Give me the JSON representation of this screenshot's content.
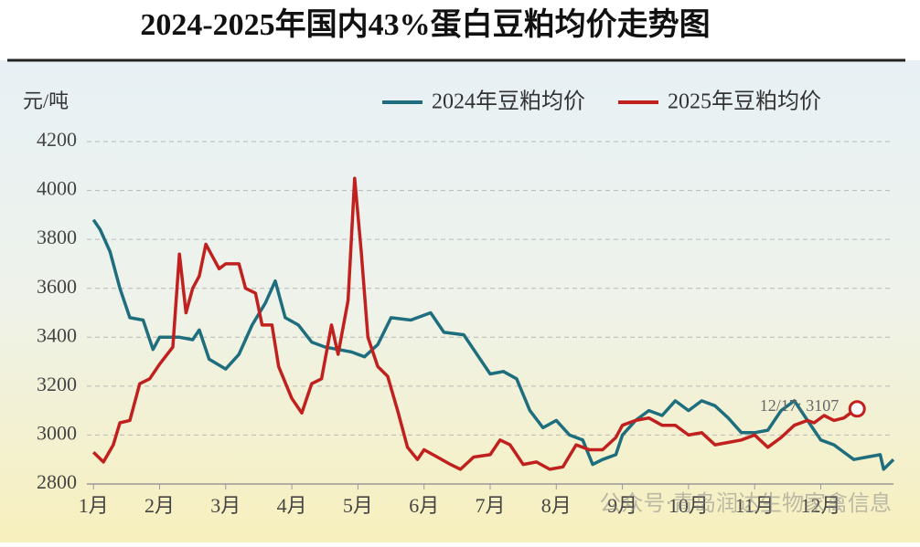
{
  "chart_data": {
    "type": "line",
    "title": "2024-2025年国内43%蛋白豆粕均价走势图",
    "y_label": "元/吨",
    "annotation": "12/17: 3107",
    "watermark": "公众号·青岛润达生物家禽信息",
    "xlim": [
      0.9,
      13.1
    ],
    "xticks": [
      {
        "value": 1,
        "label": "1月"
      },
      {
        "value": 2,
        "label": "2月"
      },
      {
        "value": 3,
        "label": "3月"
      },
      {
        "value": 4,
        "label": "4月"
      },
      {
        "value": 5,
        "label": "5月"
      },
      {
        "value": 6,
        "label": "6月"
      },
      {
        "value": 7,
        "label": "7月"
      },
      {
        "value": 8,
        "label": "8月"
      },
      {
        "value": 9,
        "label": "9月"
      },
      {
        "value": 10,
        "label": "10月"
      },
      {
        "value": 11,
        "label": "11月"
      },
      {
        "value": 12,
        "label": "12月"
      }
    ],
    "ylim": [
      2800,
      4200
    ],
    "yticks": [
      2800,
      3000,
      3200,
      3400,
      3600,
      3800,
      4000,
      4200
    ],
    "grid": true,
    "series": [
      {
        "name": "2024年豆粕均价",
        "color": "#1f6e7e",
        "x": [
          1.0,
          1.1,
          1.25,
          1.4,
          1.55,
          1.75,
          1.9,
          2.0,
          2.3,
          2.5,
          2.6,
          2.75,
          3.0,
          3.2,
          3.4,
          3.6,
          3.75,
          3.9,
          4.1,
          4.3,
          4.5,
          4.7,
          4.9,
          5.1,
          5.3,
          5.5,
          5.8,
          6.1,
          6.3,
          6.6,
          6.8,
          7.0,
          7.2,
          7.4,
          7.6,
          7.8,
          8.0,
          8.2,
          8.4,
          8.55,
          8.7,
          8.9,
          9.0,
          9.2,
          9.4,
          9.6,
          9.8,
          10.0,
          10.2,
          10.4,
          10.6,
          10.8,
          11.0,
          11.2,
          11.4,
          11.6,
          11.8,
          12.0,
          12.2,
          12.4,
          12.5,
          12.7,
          12.9,
          12.95,
          13.1
        ],
        "values": [
          3880,
          3840,
          3750,
          3600,
          3480,
          3470,
          3350,
          3400,
          3400,
          3390,
          3430,
          3310,
          3270,
          3330,
          3450,
          3540,
          3630,
          3480,
          3450,
          3380,
          3360,
          3350,
          3340,
          3320,
          3370,
          3480,
          3470,
          3500,
          3420,
          3410,
          3330,
          3250,
          3260,
          3230,
          3100,
          3030,
          3060,
          3000,
          2980,
          2880,
          2900,
          2920,
          3000,
          3060,
          3100,
          3080,
          3140,
          3100,
          3140,
          3120,
          3070,
          3010,
          3010,
          3020,
          3100,
          3140,
          3060,
          2980,
          2960,
          2920,
          2900,
          2910,
          2920,
          2860,
          2900
        ]
      },
      {
        "name": "2025年豆粕均价",
        "color": "#c0201e",
        "x": [
          1.0,
          1.15,
          1.3,
          1.4,
          1.55,
          1.7,
          1.85,
          2.0,
          2.2,
          2.3,
          2.4,
          2.5,
          2.6,
          2.7,
          2.8,
          2.9,
          3.0,
          3.2,
          3.3,
          3.45,
          3.55,
          3.7,
          3.8,
          4.0,
          4.15,
          4.3,
          4.45,
          4.6,
          4.7,
          4.85,
          4.95,
          5.05,
          5.15,
          5.3,
          5.45,
          5.6,
          5.75,
          5.9,
          6.0,
          6.2,
          6.4,
          6.55,
          6.75,
          7.0,
          7.15,
          7.3,
          7.5,
          7.7,
          7.9,
          8.1,
          8.3,
          8.5,
          8.7,
          8.9,
          9.0,
          9.2,
          9.4,
          9.6,
          9.8,
          10.0,
          10.2,
          10.4,
          10.6,
          10.8,
          11.0,
          11.2,
          11.4,
          11.6,
          11.8,
          11.9,
          12.05,
          12.2,
          12.35,
          12.45,
          12.55
        ],
        "values": [
          2930,
          2890,
          2960,
          3050,
          3060,
          3210,
          3230,
          3290,
          3360,
          3740,
          3500,
          3600,
          3650,
          3780,
          3730,
          3680,
          3700,
          3700,
          3600,
          3580,
          3450,
          3450,
          3280,
          3150,
          3090,
          3210,
          3230,
          3450,
          3330,
          3550,
          4050,
          3750,
          3400,
          3280,
          3240,
          3100,
          2950,
          2900,
          2940,
          2910,
          2880,
          2860,
          2910,
          2920,
          2980,
          2960,
          2880,
          2890,
          2860,
          2870,
          2960,
          2940,
          2940,
          2990,
          3040,
          3060,
          3070,
          3040,
          3040,
          3000,
          3010,
          2960,
          2970,
          2980,
          3000,
          2950,
          2990,
          3040,
          3060,
          3050,
          3080,
          3060,
          3070,
          3090,
          3107
        ]
      }
    ]
  }
}
